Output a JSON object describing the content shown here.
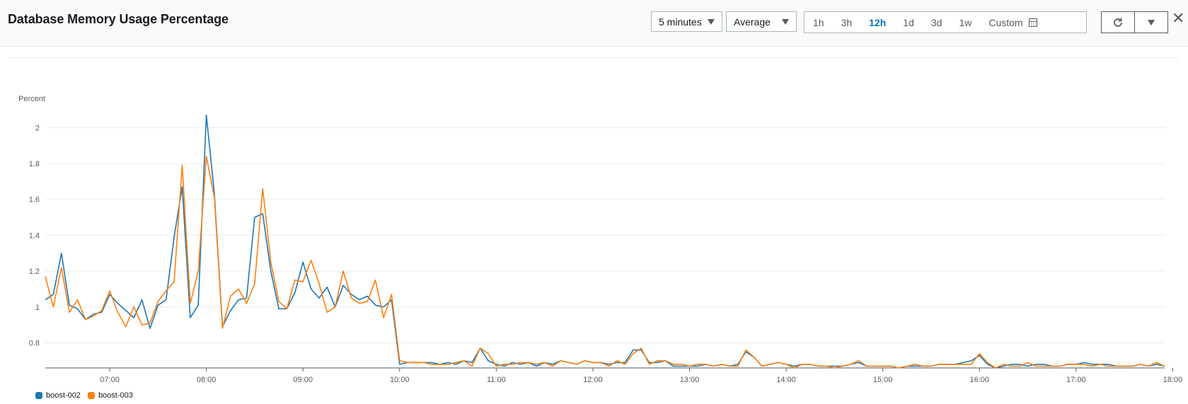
{
  "header": {
    "title": "Database Memory Usage Percentage",
    "period": "5 minutes",
    "statistic": "Average",
    "ranges": [
      "1h",
      "3h",
      "12h",
      "1d",
      "3d",
      "1w"
    ],
    "active_range": "12h",
    "custom_label": "Custom"
  },
  "colors": {
    "boost-002": "#1f77b4",
    "boost-003": "#ff7f0e",
    "grid": "#e9ebed"
  },
  "chart_data": {
    "type": "line",
    "title": "Database Memory Usage Percentage",
    "ylabel": "Percent",
    "xlabel": "",
    "ylim": [
      0.66,
      2.1
    ],
    "yticks": [
      0.8,
      1,
      1.2,
      1.4,
      1.6,
      1.8,
      2
    ],
    "ytick_labels": [
      "0.8",
      "1",
      "1.2",
      "1.4",
      "1.6",
      "1.8",
      "2"
    ],
    "xticks": [
      "07:00",
      "08:00",
      "09:00",
      "10:00",
      "11:00",
      "12:00",
      "13:00",
      "14:00",
      "15:00",
      "16:00",
      "17:00",
      "18:00"
    ],
    "x_start": "06:20",
    "x_step_minutes": 5,
    "legend_position": "bottom-left",
    "grid": true,
    "series": [
      {
        "name": "boost-002",
        "color": "#1f77b4",
        "values": [
          1.04,
          1.07,
          1.3,
          1.01,
          0.99,
          0.93,
          0.96,
          0.97,
          1.07,
          1.02,
          0.98,
          0.94,
          1.04,
          0.88,
          1.01,
          1.04,
          1.39,
          1.67,
          0.94,
          1.01,
          2.07,
          1.63,
          0.89,
          0.98,
          1.04,
          1.05,
          1.5,
          1.52,
          1.2,
          0.99,
          0.99,
          1.08,
          1.25,
          1.1,
          1.05,
          1.11,
          1.0,
          1.12,
          1.07,
          1.04,
          1.06,
          1.01,
          1.0,
          1.04,
          0.68,
          0.69,
          0.69,
          0.69,
          0.69,
          0.68,
          0.69,
          0.68,
          0.7,
          0.69,
          0.77,
          0.7,
          0.68,
          0.67,
          0.69,
          0.68,
          0.69,
          0.67,
          0.69,
          0.68,
          0.7,
          0.69,
          0.68,
          0.7,
          0.69,
          0.69,
          0.68,
          0.69,
          0.69,
          0.76,
          0.76,
          0.69,
          0.69,
          0.7,
          0.67,
          0.67,
          0.67,
          0.67,
          0.68,
          0.67,
          0.68,
          0.67,
          0.68,
          0.75,
          0.72,
          0.67,
          0.68,
          0.69,
          0.68,
          0.67,
          0.68,
          0.68,
          0.67,
          0.67,
          0.67,
          0.67,
          0.68,
          0.69,
          0.67,
          0.67,
          0.67,
          0.67,
          0.66,
          0.67,
          0.67,
          0.67,
          0.67,
          0.68,
          0.68,
          0.68,
          0.69,
          0.7,
          0.73,
          0.68,
          0.66,
          0.67,
          0.68,
          0.68,
          0.67,
          0.68,
          0.68,
          0.67,
          0.67,
          0.68,
          0.68,
          0.69,
          0.68,
          0.68,
          0.68,
          0.67,
          0.67,
          0.67,
          0.68,
          0.67,
          0.68,
          0.67
        ]
      },
      {
        "name": "boost-003",
        "color": "#ff7f0e",
        "values": [
          1.17,
          1.0,
          1.22,
          0.97,
          1.04,
          0.93,
          0.95,
          0.98,
          1.09,
          0.97,
          0.89,
          1.0,
          0.9,
          0.91,
          1.03,
          1.09,
          1.14,
          1.79,
          1.02,
          1.2,
          1.84,
          1.61,
          0.88,
          1.06,
          1.1,
          1.02,
          1.13,
          1.66,
          1.25,
          1.03,
          0.99,
          1.15,
          1.14,
          1.26,
          1.13,
          0.97,
          1.0,
          1.2,
          1.05,
          1.02,
          1.03,
          1.15,
          0.94,
          1.07,
          0.7,
          0.69,
          0.69,
          0.69,
          0.68,
          0.68,
          0.68,
          0.69,
          0.7,
          0.67,
          0.77,
          0.74,
          0.67,
          0.68,
          0.68,
          0.69,
          0.69,
          0.68,
          0.69,
          0.67,
          0.7,
          0.69,
          0.68,
          0.7,
          0.69,
          0.69,
          0.67,
          0.7,
          0.68,
          0.74,
          0.77,
          0.68,
          0.7,
          0.7,
          0.68,
          0.68,
          0.67,
          0.68,
          0.68,
          0.67,
          0.68,
          0.67,
          0.67,
          0.76,
          0.72,
          0.67,
          0.68,
          0.69,
          0.68,
          0.66,
          0.68,
          0.68,
          0.67,
          0.67,
          0.66,
          0.67,
          0.68,
          0.7,
          0.67,
          0.67,
          0.67,
          0.67,
          0.66,
          0.67,
          0.68,
          0.67,
          0.67,
          0.68,
          0.68,
          0.68,
          0.68,
          0.68,
          0.74,
          0.69,
          0.66,
          0.68,
          0.67,
          0.67,
          0.69,
          0.67,
          0.67,
          0.67,
          0.67,
          0.68,
          0.68,
          0.68,
          0.67,
          0.68,
          0.67,
          0.67,
          0.67,
          0.67,
          0.68,
          0.67,
          0.69,
          0.67
        ]
      }
    ]
  }
}
